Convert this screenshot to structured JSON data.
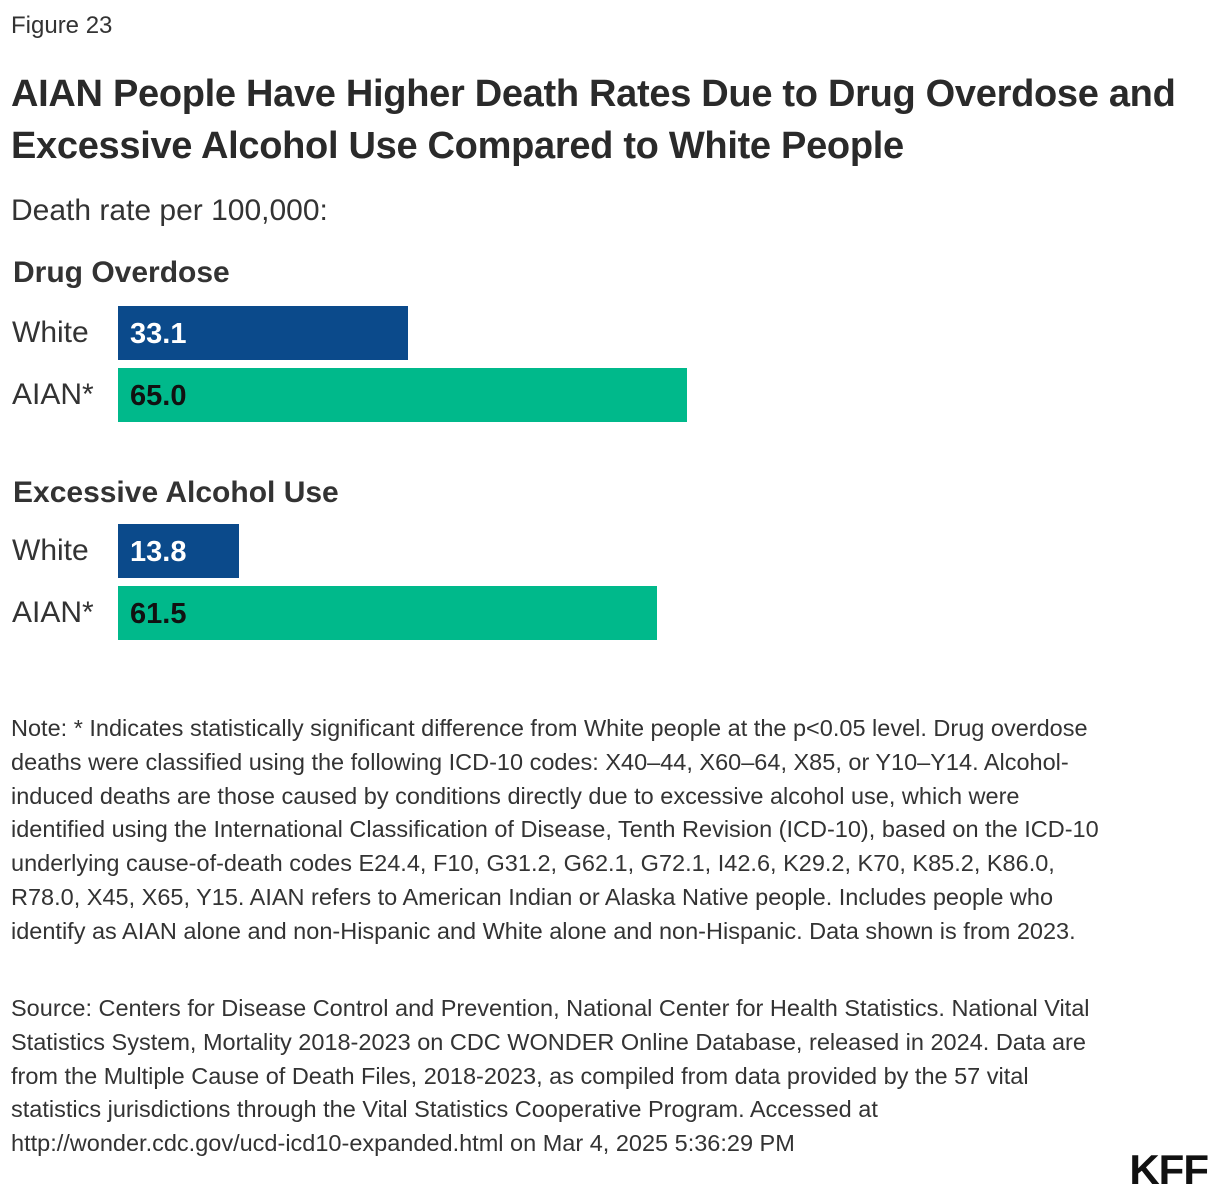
{
  "figure_label": "Figure 23",
  "title": "AIAN People Have Higher Death Rates Due to Drug Overdose and Excessive Alcohol Use Compared to White People",
  "subtitle": "Death rate per 100,000:",
  "colors": {
    "white": "#0b4a8b",
    "aian": "#00b98b",
    "white_label": "#ffffff",
    "aian_label": "#111111"
  },
  "chart_data": {
    "type": "bar",
    "orientation": "horizontal",
    "xlim": [
      0,
      104.6
    ],
    "groups": [
      {
        "title": "Drug Overdose",
        "bars": [
          {
            "category": "White",
            "value": 33.1,
            "label": "33.1"
          },
          {
            "category": "AIAN*",
            "value": 65.0,
            "label": "65.0"
          }
        ]
      },
      {
        "title": "Excessive Alcohol Use",
        "bars": [
          {
            "category": "White",
            "value": 13.8,
            "label": "13.8"
          },
          {
            "category": "AIAN*",
            "value": 61.5,
            "label": "61.5"
          }
        ]
      }
    ]
  },
  "note": "Note: * Indicates statistically significant difference from White people at the p<0.05 level. Drug overdose deaths were classified using the following ICD-10 codes: X40–44, X60–64, X85, or Y10–Y14. Alcohol-induced deaths are those caused by conditions directly due to excessive alcohol use, which were identified using the International Classification of Disease, Tenth Revision (ICD-10), based on the ICD-10 underlying cause-of-death codes E24.4, F10, G31.2, G62.1, G72.1, I42.6, K29.2, K70, K85.2, K86.0, R78.0, X45, X65, Y15. AIAN refers to American Indian or Alaska Native people. Includes people who identify as AIAN alone and non-Hispanic and White alone and non-Hispanic. Data shown is from 2023.",
  "source": "Source: Centers for Disease Control and Prevention, National Center for Health Statistics. National Vital Statistics System, Mortality 2018-2023 on CDC WONDER Online Database, released in 2024. Data are from the Multiple Cause of Death Files, 2018-2023, as compiled from data provided by the 57 vital statistics jurisdictions through the Vital Statistics Cooperative Program. Accessed at http://wonder.cdc.gov/ucd-icd10-expanded.html on Mar 4, 2025 5:36:29 PM",
  "logo": "KFF"
}
